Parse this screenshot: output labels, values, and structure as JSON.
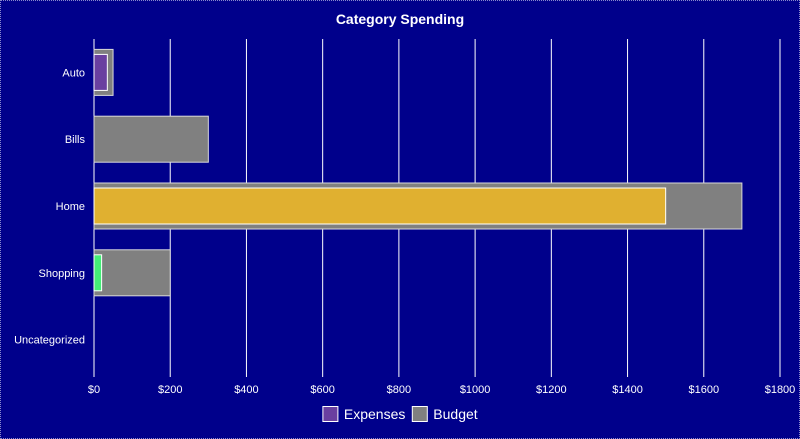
{
  "chart_data": {
    "type": "bar",
    "orientation": "horizontal",
    "title": "Category Spending",
    "categories": [
      "Auto",
      "Bills",
      "Home",
      "Shopping",
      "Uncategorized"
    ],
    "series": [
      {
        "name": "Budget",
        "values": [
          50,
          300,
          1700,
          200,
          0
        ],
        "color": "#808080",
        "border": "#d9d9d9"
      },
      {
        "name": "Expenses",
        "values": [
          35,
          0,
          1500,
          20,
          0
        ],
        "colors": [
          "#6a3fa0",
          "#6a3fa0",
          "#e0b030",
          "#44ee77",
          "#6a3fa0"
        ],
        "border": "#ffffff"
      }
    ],
    "xlim": [
      0,
      1800
    ],
    "x_ticks": [
      0,
      200,
      400,
      600,
      800,
      1000,
      1200,
      1400,
      1600,
      1800
    ],
    "x_tick_labels": [
      "$0",
      "$200",
      "$400",
      "$600",
      "$800",
      "$1000",
      "$1200",
      "$1400",
      "$1600",
      "$1800"
    ],
    "grid": true,
    "legend": {
      "position": "bottom",
      "items": [
        {
          "label": "Expenses",
          "color": "#6a3fa0"
        },
        {
          "label": "Budget",
          "color": "#808080"
        }
      ]
    },
    "colors": {
      "background": "#00008b",
      "grid": "#ffffff",
      "text": "#ffffff"
    }
  }
}
